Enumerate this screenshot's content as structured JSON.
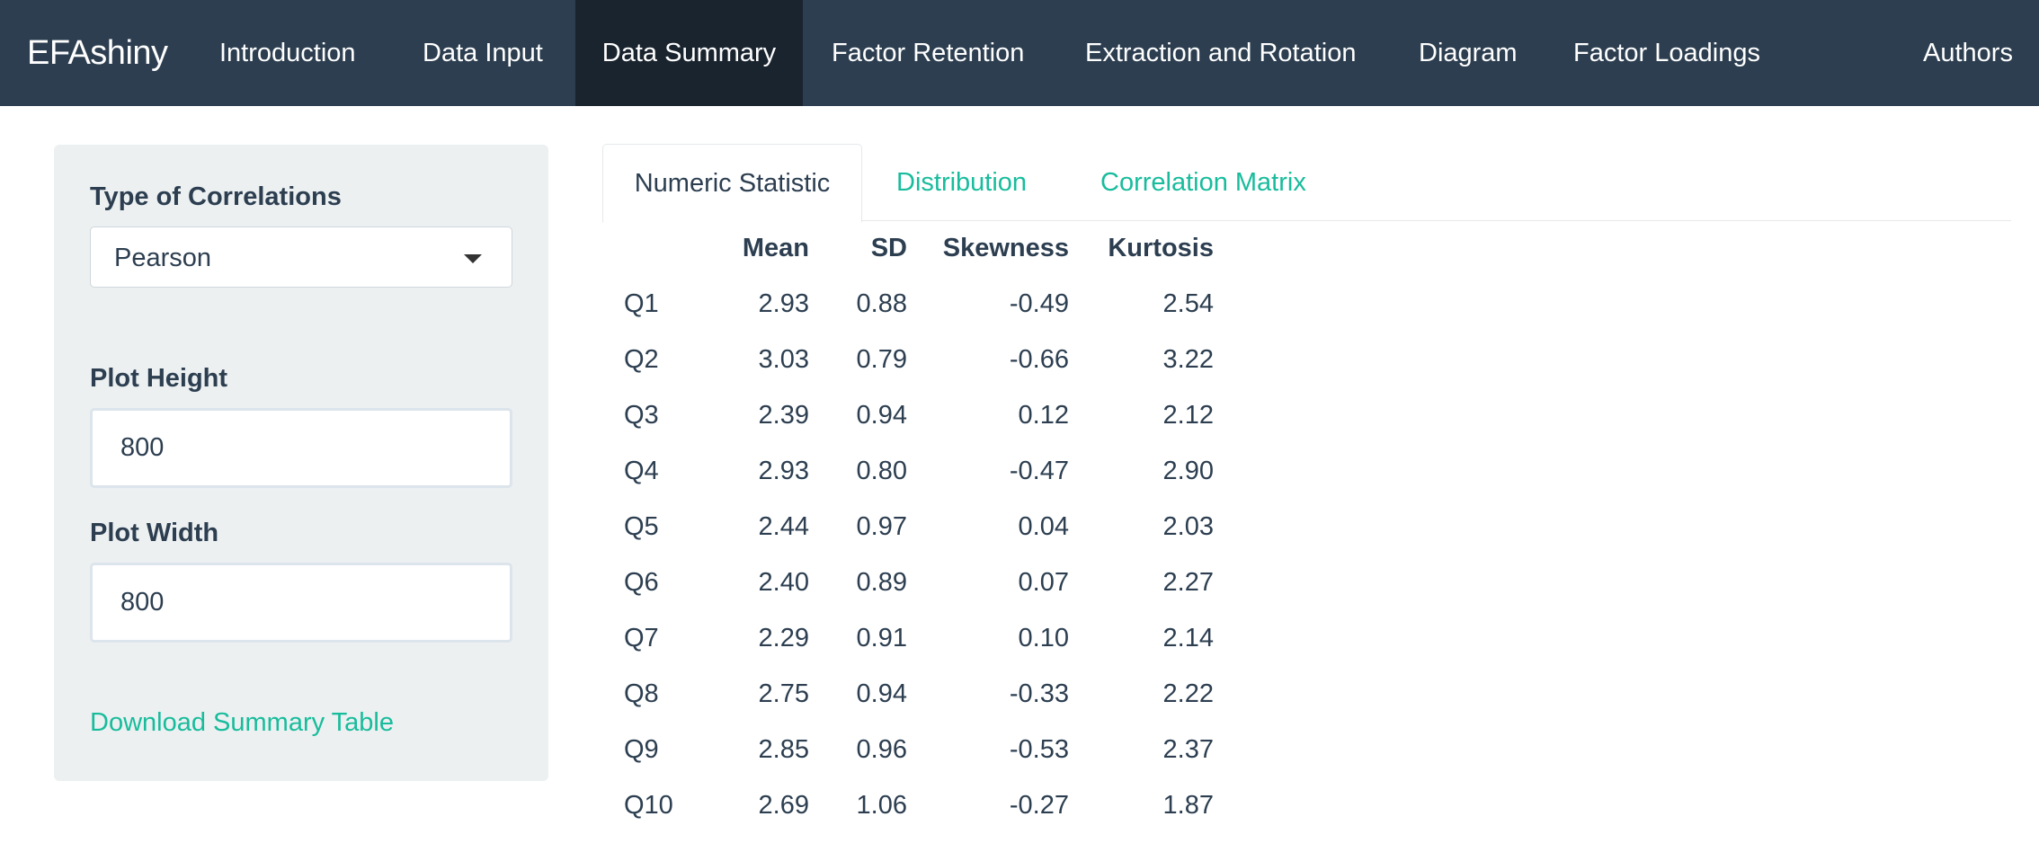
{
  "navbar": {
    "brand": "EFAshiny",
    "items": [
      {
        "label": "Introduction",
        "active": false
      },
      {
        "label": "Data Input",
        "active": false
      },
      {
        "label": "Data Summary",
        "active": true
      },
      {
        "label": "Factor Retention",
        "active": false
      },
      {
        "label": "Extraction and Rotation",
        "active": false
      },
      {
        "label": "Diagram",
        "active": false
      },
      {
        "label": "Factor Loadings",
        "active": false
      }
    ],
    "right_item": "Authors"
  },
  "sidebar": {
    "correlation_label": "Type of Correlations",
    "correlation_selected": "Pearson",
    "plot_height_label": "Plot Height",
    "plot_height_value": "800",
    "plot_width_label": "Plot Width",
    "plot_width_value": "800",
    "download_link": "Download Summary Table"
  },
  "tabs": [
    {
      "label": "Numeric Statistic",
      "active": true
    },
    {
      "label": "Distribution",
      "active": false
    },
    {
      "label": "Correlation Matrix",
      "active": false
    }
  ],
  "table": {
    "headers": [
      "",
      "Mean",
      "SD",
      "Skewness",
      "Kurtosis"
    ],
    "rows": [
      [
        "Q1",
        "2.93",
        "0.88",
        "-0.49",
        "2.54"
      ],
      [
        "Q2",
        "3.03",
        "0.79",
        "-0.66",
        "3.22"
      ],
      [
        "Q3",
        "2.39",
        "0.94",
        "0.12",
        "2.12"
      ],
      [
        "Q4",
        "2.93",
        "0.80",
        "-0.47",
        "2.90"
      ],
      [
        "Q5",
        "2.44",
        "0.97",
        "0.04",
        "2.03"
      ],
      [
        "Q6",
        "2.40",
        "0.89",
        "0.07",
        "2.27"
      ],
      [
        "Q7",
        "2.29",
        "0.91",
        "0.10",
        "2.14"
      ],
      [
        "Q8",
        "2.75",
        "0.94",
        "-0.33",
        "2.22"
      ],
      [
        "Q9",
        "2.85",
        "0.96",
        "-0.53",
        "2.37"
      ],
      [
        "Q10",
        "2.69",
        "1.06",
        "-0.27",
        "1.87"
      ]
    ]
  },
  "colors": {
    "navbar_bg": "#2c3e50",
    "navbar_active_bg": "#1a242f",
    "accent": "#18bc9c",
    "text": "#2c3e50",
    "sidebar_bg": "#ecf0f1"
  }
}
